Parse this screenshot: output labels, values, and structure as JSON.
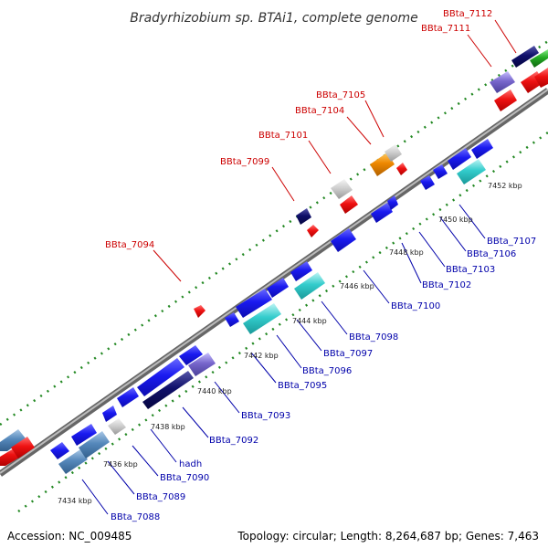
{
  "title": "Bradyrhizobium sp. BTAi1, complete genome",
  "footer": {
    "accession": "Accession: NC_009485",
    "topology": "Topology: circular; Length: 8,264,687 bp; Genes: 7,463"
  },
  "colors": {
    "backbone": "#888888",
    "label_top": "#cc0000",
    "label_bottom": "#0000aa",
    "dots": "#228822",
    "gene_blue": "#1515e0",
    "gene_red": "#ee1111",
    "gene_cyan": "#33cccc",
    "gene_steel": "#5588bb",
    "gene_purple": "#7766cc",
    "gene_navy": "#10106a",
    "gene_gray": "#c8c8c8",
    "gene_orange": "#ee8800",
    "gene_green": "#22aa22"
  },
  "ticks": [
    "7434 kbp",
    "7436 kbp",
    "7438 kbp",
    "7440 kbp",
    "7442 kbp",
    "7444 kbp",
    "7446 kbp",
    "7448 kbp",
    "7450 kbp",
    "7452 kbp"
  ],
  "top_labels": [
    "BBta_7094",
    "BBta_7099",
    "BBta_7101",
    "BBta_7104",
    "BBta_7105",
    "BBta_7111",
    "BBta_7112"
  ],
  "bottom_labels": [
    "BBta_7088",
    "BBta_7089",
    "BBta_7090",
    "hadh",
    "BBta_7092",
    "BBta_7093",
    "BBta_7095",
    "BBta_7096",
    "BBta_7097",
    "BBta_7098",
    "BBta_7100",
    "BBta_7102",
    "BBta_7103",
    "BBta_7106",
    "BBta_7107"
  ]
}
